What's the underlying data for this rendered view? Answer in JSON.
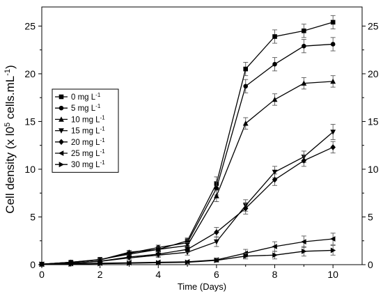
{
  "chart_data": {
    "type": "line",
    "xlabel": "Time (Days)",
    "ylabel": "Cell density (x l0<sup>5</sup> cells.mL<sup>-1</sup>)",
    "ylabel_parts": {
      "prefix": "Cell density (x l0",
      "sup1": "5",
      "mid": " cells.mL",
      "sup2": "-1",
      "suffix": ")"
    },
    "xlim": [
      0,
      11
    ],
    "ylim": [
      0,
      27
    ],
    "xticks": [
      0,
      2,
      4,
      6,
      8,
      10
    ],
    "yticks": [
      0,
      5,
      10,
      15,
      20,
      25
    ],
    "right_axis_ticks": true,
    "legend_position": "center-left",
    "x": [
      0,
      1,
      2,
      3,
      4,
      5,
      6,
      7,
      8,
      9,
      10
    ],
    "series": [
      {
        "name": "0 mg L",
        "unit_sup": "-1",
        "marker": "square",
        "values": [
          0.05,
          0.25,
          0.55,
          1.1,
          1.6,
          2.5,
          8.5,
          20.5,
          23.9,
          24.5,
          25.4
        ],
        "errors": [
          0.1,
          0.1,
          0.15,
          0.2,
          0.25,
          0.3,
          0.7,
          0.7,
          0.7,
          0.7,
          0.7
        ]
      },
      {
        "name": "5 mg L",
        "unit_sup": "-1",
        "marker": "circle",
        "values": [
          0.05,
          0.25,
          0.5,
          1.2,
          1.8,
          2.3,
          8.0,
          18.7,
          21.0,
          22.9,
          23.1
        ],
        "errors": [
          0.1,
          0.1,
          0.15,
          0.2,
          0.25,
          0.3,
          0.7,
          0.7,
          0.7,
          0.7,
          0.7
        ]
      },
      {
        "name": "10 mg L",
        "unit_sup": "-1",
        "marker": "triangle-up",
        "values": [
          0.05,
          0.25,
          0.5,
          1.3,
          1.6,
          2.0,
          7.2,
          14.8,
          17.3,
          19.0,
          19.2
        ],
        "errors": [
          0.1,
          0.1,
          0.15,
          0.2,
          0.25,
          0.3,
          0.6,
          0.6,
          0.6,
          0.6,
          0.6
        ]
      },
      {
        "name": "15 mg L",
        "unit_sup": "-1",
        "marker": "triangle-down",
        "values": [
          0.05,
          0.15,
          0.35,
          0.7,
          1.0,
          1.3,
          2.4,
          6.2,
          9.7,
          11.3,
          13.9
        ],
        "errors": [
          0.1,
          0.1,
          0.15,
          0.2,
          0.25,
          0.3,
          0.5,
          0.6,
          0.6,
          0.6,
          0.8
        ]
      },
      {
        "name": "20 mg L",
        "unit_sup": "-1",
        "marker": "diamond",
        "values": [
          0.05,
          0.15,
          0.35,
          0.8,
          1.1,
          1.6,
          3.4,
          5.9,
          8.9,
          10.9,
          12.3
        ],
        "errors": [
          0.1,
          0.1,
          0.15,
          0.2,
          0.25,
          0.3,
          0.5,
          0.6,
          0.6,
          0.6,
          0.6
        ]
      },
      {
        "name": "25 mg L",
        "unit_sup": "-1",
        "marker": "triangle-left",
        "values": [
          0.05,
          0.1,
          0.15,
          0.2,
          0.25,
          0.3,
          0.5,
          1.2,
          1.9,
          2.4,
          2.7
        ],
        "errors": [
          0.05,
          0.05,
          0.1,
          0.1,
          0.1,
          0.1,
          0.2,
          0.4,
          0.5,
          0.6,
          0.6
        ]
      },
      {
        "name": "30 mg L",
        "unit_sup": "-1",
        "marker": "triangle-right",
        "values": [
          0.05,
          0.05,
          0.1,
          0.15,
          0.2,
          0.25,
          0.45,
          0.9,
          1.0,
          1.4,
          1.5
        ],
        "errors": [
          0.05,
          0.05,
          0.1,
          0.1,
          0.1,
          0.1,
          0.2,
          0.3,
          0.4,
          0.5,
          0.5
        ]
      }
    ]
  }
}
